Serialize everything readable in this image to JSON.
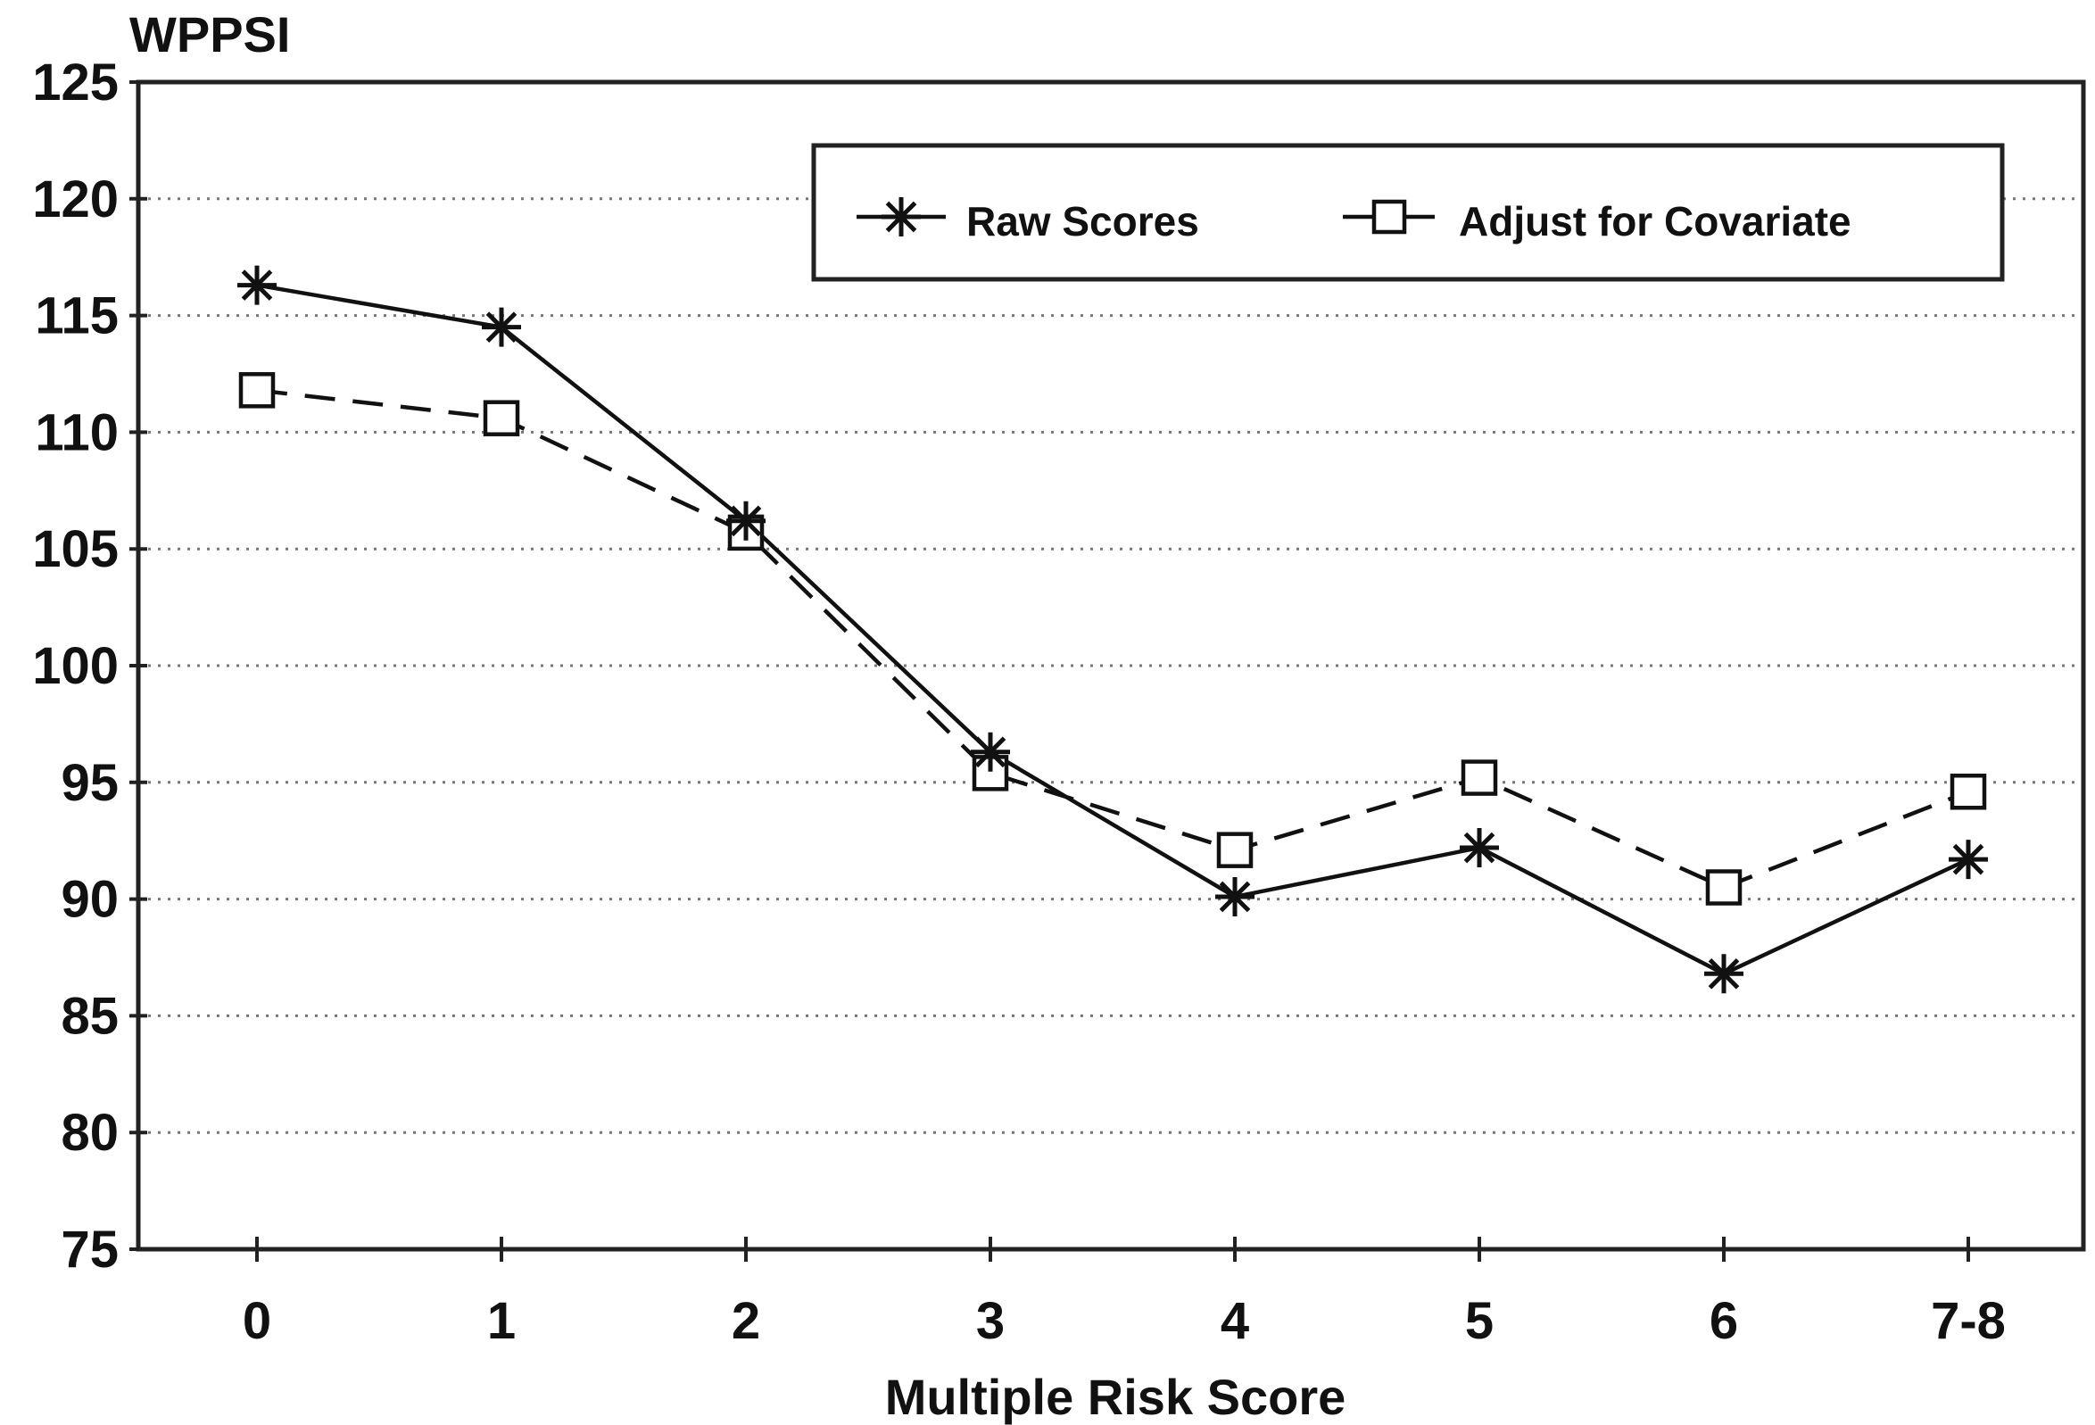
{
  "chart_data": {
    "type": "line",
    "title": "",
    "ylabel": "WPPSI",
    "xlabel": "Multiple Risk Score",
    "categories": [
      "0",
      "1",
      "2",
      "3",
      "4",
      "5",
      "6",
      "7-8"
    ],
    "ylim": [
      75,
      125
    ],
    "yticks": [
      75,
      80,
      85,
      90,
      95,
      100,
      105,
      110,
      115,
      120,
      125
    ],
    "grid": true,
    "legend_position": "top-right",
    "series": [
      {
        "name": "Raw Scores",
        "style": "solid",
        "marker": "asterisk",
        "values": [
          116.3,
          114.5,
          106.2,
          96.3,
          90.1,
          92.2,
          86.8,
          91.7
        ]
      },
      {
        "name": "Adjust for Covariate",
        "style": "dashed",
        "marker": "open-square",
        "values": [
          111.8,
          110.6,
          105.7,
          95.4,
          92.1,
          95.2,
          90.5,
          94.6
        ]
      }
    ]
  }
}
